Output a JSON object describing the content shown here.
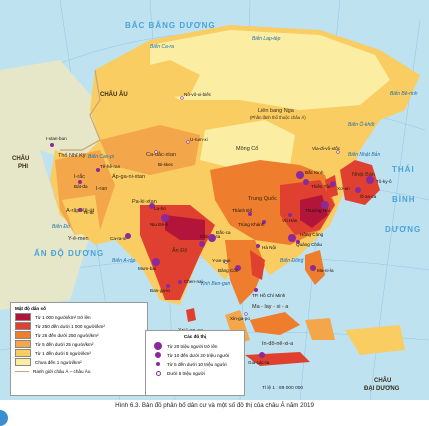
{
  "map": {
    "oceans": [
      {
        "id": "bac-bang",
        "text": "BẮC  BĂNG  DƯƠNG"
      },
      {
        "id": "thai-binh-1",
        "text": "THÁI"
      },
      {
        "id": "thai-binh-2",
        "text": "BÌNH"
      },
      {
        "id": "thai-binh-3",
        "text": "DƯƠNG"
      },
      {
        "id": "an-do-duong",
        "text": "ẤN  ĐỘ  DƯƠNG"
      },
      {
        "id": "chau-au",
        "text": "CHÂU ÂU"
      },
      {
        "id": "chau-phi-1",
        "text": "CHÂU"
      },
      {
        "id": "chau-phi-2",
        "text": "PHI"
      },
      {
        "id": "chau-dai-duong-1",
        "text": "CHÂU"
      },
      {
        "id": "chau-dai-duong-2",
        "text": "ĐẠI DƯƠNG"
      }
    ],
    "places": [
      {
        "id": "lien-bang-nga",
        "text": "Liên bang Nga"
      },
      {
        "id": "lien-bang-nga-sub",
        "text": "(Phần lãnh thổ thuộc châu Á)"
      },
      {
        "id": "ca-dac-xtan",
        "text": "Ca-dắc-xtan"
      },
      {
        "id": "mong-co",
        "text": "Mông Cổ"
      },
      {
        "id": "trung-quoc",
        "text": "Trung Quốc"
      },
      {
        "id": "nhat-ban",
        "text": "Nhật Bản"
      },
      {
        "id": "an-do",
        "text": "Ấn Độ"
      },
      {
        "id": "i-ran",
        "text": "I-ran"
      },
      {
        "id": "a-rap-xe-ut",
        "text": "A-rập Xê-út"
      },
      {
        "id": "tho-nhi-ky",
        "text": "Thổ Nhĩ Kỳ"
      },
      {
        "id": "ap-ga-ni-xtan",
        "text": "Áp-ga-ni-xtan"
      },
      {
        "id": "pa-ki-xtan",
        "text": "Pa-ki-xtan"
      },
      {
        "id": "ma-lay-xi-a",
        "text": "Ma - lay - xi - a"
      },
      {
        "id": "in-do",
        "text": "In-đô-nê-xi-a"
      },
      {
        "id": "xri-lan-ca",
        "text": "Xri Lan-ca"
      },
      {
        "id": "y-e-men",
        "text": "Y-ê-men"
      },
      {
        "id": "i-rac",
        "text": "I-rắc"
      }
    ],
    "seas": [
      {
        "id": "bien-bering",
        "text": "Biển Bê-rinh"
      },
      {
        "id": "bien-o-khot",
        "text": "Biển Ô-khốt"
      },
      {
        "id": "bien-nhat-ban",
        "text": "Biển Nhật Bản"
      },
      {
        "id": "bien-dong",
        "text": "Biển Đông"
      },
      {
        "id": "vinh-ben-gan",
        "text": "Vịnh Ben-gan"
      },
      {
        "id": "bien-a-rap",
        "text": "Biển A-rập"
      },
      {
        "id": "bien-cax-pi",
        "text": "Biển Cax-pi"
      },
      {
        "id": "bien-do",
        "text": "Biển Đỏ"
      },
      {
        "id": "bien-kara",
        "text": "Biển Ca-ra"
      },
      {
        "id": "bien-laptev",
        "text": "Biển Lap-tép"
      }
    ],
    "cities": [
      {
        "id": "bac-kinh",
        "text": "Bắc Kinh",
        "size": "large"
      },
      {
        "id": "thuong-hai",
        "text": "Thượng Hải",
        "size": "large"
      },
      {
        "id": "tokyo",
        "text": "Tô-ky-ô",
        "size": "large"
      },
      {
        "id": "quang-chau",
        "text": "Quảng Châu",
        "size": "large"
      },
      {
        "id": "delhi",
        "text": "Niu Đê-li",
        "size": "large"
      },
      {
        "id": "mumbai",
        "text": "Mum-bai",
        "size": "large"
      },
      {
        "id": "kolkata",
        "text": "Côn-ca-ta",
        "size": "medium"
      },
      {
        "id": "dhaka",
        "text": "Đắc-ca",
        "size": "large"
      },
      {
        "id": "karachi",
        "text": "Ca-ra-si",
        "size": "medium"
      },
      {
        "id": "lahore",
        "text": "La-ho",
        "size": "medium"
      },
      {
        "id": "thien-tan",
        "text": "Thiên Tân",
        "size": "medium"
      },
      {
        "id": "seoul",
        "text": "Xơ-un",
        "size": "medium"
      },
      {
        "id": "osaka",
        "text": "Ô-xa-ca",
        "size": "medium"
      },
      {
        "id": "manila",
        "text": "Ma-ni-la",
        "size": "medium"
      },
      {
        "id": "jakarta",
        "text": "Gia-các-ta",
        "size": "medium"
      },
      {
        "id": "bangkok",
        "text": "Băng Cốc",
        "size": "medium"
      },
      {
        "id": "tp-hcm",
        "text": "TP. Hồ Chí Minh",
        "size": "small"
      },
      {
        "id": "ha-noi",
        "text": "Hà Nội",
        "size": "small"
      },
      {
        "id": "tehran",
        "text": "Tê-hê-ran",
        "size": "small"
      },
      {
        "id": "chennai",
        "text": "Chen-nai",
        "size": "small"
      },
      {
        "id": "bangalore",
        "text": "Ban-ga-lo",
        "size": "small"
      },
      {
        "id": "istanbul",
        "text": "I-xtan-bun",
        "size": "small"
      },
      {
        "id": "baghdad",
        "text": "Bát-đa",
        "size": "small"
      },
      {
        "id": "riyadh",
        "text": "Ri-át",
        "size": "small"
      },
      {
        "id": "chung-khanh",
        "text": "Trùng Khánh",
        "size": "small"
      },
      {
        "id": "vu-han",
        "text": "Vũ Hán",
        "size": "small"
      },
      {
        "id": "thanh-do",
        "text": "Thành Đô",
        "size": "small"
      },
      {
        "id": "hong-kong",
        "text": "Hồng Công",
        "size": "small"
      },
      {
        "id": "yangon",
        "text": "Y-an-gun",
        "size": "xs"
      },
      {
        "id": "singapore",
        "text": "Xin-ga-po",
        "size": "xs"
      },
      {
        "id": "urumqi",
        "text": "U-rum-xi",
        "size": "xs"
      },
      {
        "id": "novosibirsk",
        "text": "Nô-vô-xi-biếc",
        "size": "xs"
      },
      {
        "id": "vladivostok",
        "text": "Vla-đi-vô-xtốc",
        "size": "xs"
      },
      {
        "id": "bishkek",
        "text": "Bi-skec",
        "size": "xs"
      }
    ]
  },
  "legend_density": {
    "title": "Mật độ dân số",
    "items": [
      {
        "label": "Từ 1 000 người/km² trở lên",
        "color": "#b3153a"
      },
      {
        "label": "Từ 250 đến dưới 1 000 người/km²",
        "color": "#e0402f"
      },
      {
        "label": "Từ 25 đến dưới 250 người/km²",
        "color": "#ee7d2e"
      },
      {
        "label": "Từ 5 đến dưới 25 người/km²",
        "color": "#f4a64a"
      },
      {
        "label": "Từ 1 đến dưới 5 người/km²",
        "color": "#f9cd62"
      },
      {
        "label": "Chưa đến 1 người/km²",
        "color": "#fbeea3"
      }
    ],
    "boundary_label": "Ranh giới châu Á – châu Âu"
  },
  "legend_city": {
    "title": "Các đô thị",
    "items": [
      {
        "label": "Từ 20 triệu người trở lên",
        "size": "large"
      },
      {
        "label": "Từ 10 đến dưới 20 triệu người",
        "size": "medium"
      },
      {
        "label": "Từ 5 đến dưới 10 triệu người",
        "size": "small"
      },
      {
        "label": "Dưới 5 triệu người",
        "size": "xs"
      }
    ]
  },
  "scale": "Tỉ lệ 1 : 89 000 000",
  "caption": "Hình 6.3. Bản đồ phân bố dân cư và một số đô thị của châu Á năm 2019"
}
